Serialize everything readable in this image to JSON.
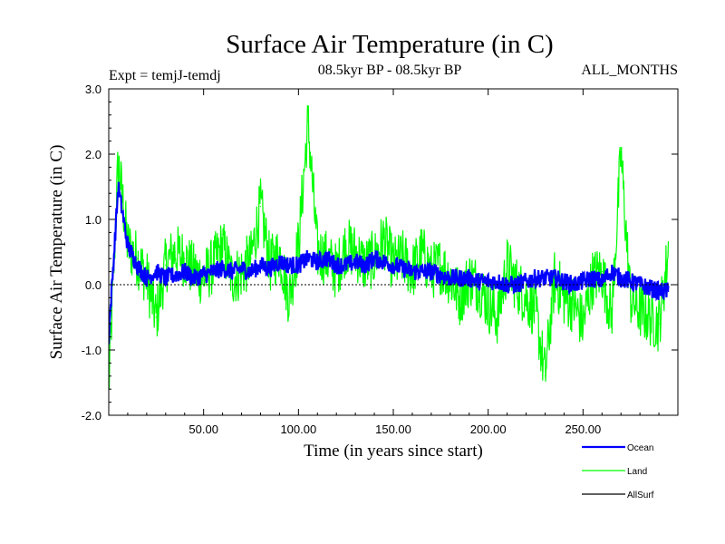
{
  "chart_data": {
    "type": "line",
    "title": "Surface Air Temperature (in C)",
    "subtitle": "08.5kyr BP - 08.5kyr BP",
    "left_label": "Expt = temjJ-temdj",
    "right_label": "ALL_MONTHS",
    "xlabel": "Time (in years since start)",
    "ylabel": "Surface Air Temperature (in C)",
    "xlim": [
      0,
      300
    ],
    "ylim": [
      -2.0,
      3.0
    ],
    "x_ticks": [
      50,
      100,
      150,
      200,
      250
    ],
    "x_tick_labels": [
      "50.00",
      "100.00",
      "150.00",
      "200.00",
      "250.00"
    ],
    "y_ticks": [
      -2,
      -1,
      0,
      1,
      2,
      3
    ],
    "y_tick_labels": [
      "-2.0",
      "-1.0",
      "0.0",
      "1.0",
      "2.0",
      "3.0"
    ],
    "zero_line": true,
    "legend": "right-bottom",
    "series": [
      {
        "name": "Ocean",
        "color": "#0000ff",
        "x_step": 5,
        "values": [
          -0.8,
          1.5,
          0.6,
          0.3,
          0.1,
          0.2,
          0.1,
          0.15,
          0.2,
          0.1,
          0.15,
          0.2,
          0.25,
          0.2,
          0.25,
          0.2,
          0.3,
          0.25,
          0.35,
          0.3,
          0.3,
          0.4,
          0.35,
          0.4,
          0.3,
          0.3,
          0.35,
          0.3,
          0.4,
          0.35,
          0.3,
          0.25,
          0.2,
          0.2,
          0.2,
          0.15,
          0.1,
          0.1,
          0.1,
          0.05,
          0.05,
          0.05,
          0.0,
          0.0,
          0.05,
          0.1,
          0.1,
          0.1,
          0.05,
          0.0,
          0.05,
          0.1,
          0.05,
          0.2,
          0.1,
          0.05,
          0.0,
          -0.05,
          -0.1,
          -0.1
        ]
      },
      {
        "name": "Land",
        "color": "#00ff00",
        "x_step": 5,
        "values": [
          -1.6,
          1.9,
          0.6,
          0.4,
          0.1,
          -0.5,
          0.3,
          0.5,
          0.4,
          0.2,
          0.1,
          0.3,
          0.6,
          0.1,
          0.2,
          0.4,
          1.2,
          0.3,
          0.5,
          -0.2,
          0.6,
          2.5,
          0.5,
          0.4,
          0.2,
          0.6,
          0.5,
          0.3,
          0.4,
          0.7,
          0.3,
          0.4,
          0.2,
          0.5,
          0.2,
          0.3,
          0.1,
          -0.2,
          0.1,
          0.0,
          -0.3,
          -0.5,
          0.3,
          0.0,
          -0.2,
          -0.4,
          -1.4,
          0.1,
          -0.2,
          -0.3,
          -0.6,
          0.1,
          0.2,
          -0.5,
          2.0,
          -0.2,
          -0.4,
          -0.5,
          -0.6,
          0.5
        ]
      },
      {
        "name": "AllSurf",
        "color": "#000000",
        "values": []
      }
    ]
  }
}
